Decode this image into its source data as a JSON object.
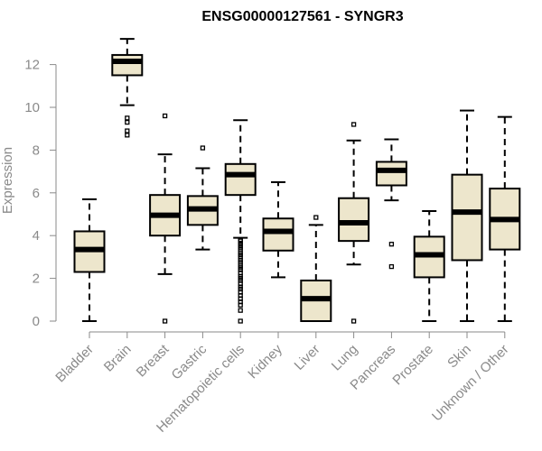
{
  "chart_data": {
    "type": "boxplot",
    "title": "ENSG00000127561 - SYNGR3",
    "xlabel": "",
    "ylabel": "Expression",
    "ylim": [
      0,
      13
    ],
    "yticks": [
      0,
      2,
      4,
      6,
      8,
      10,
      12
    ],
    "grid": false,
    "box_color": "#ede6cc",
    "categories": [
      "Bladder",
      "Brain",
      "Breast",
      "Gastric",
      "Hematopoietic cells",
      "Kidney",
      "Liver",
      "Lung",
      "Pancreas",
      "Prostate",
      "Skin",
      "Unknown / Other"
    ],
    "series": [
      {
        "min": 0.0,
        "q1": 2.3,
        "median": 3.35,
        "q3": 4.2,
        "max": 5.7,
        "outliers": []
      },
      {
        "min": 10.1,
        "q1": 11.5,
        "median": 12.15,
        "q3": 12.45,
        "max": 13.2,
        "outliers": [
          8.7,
          8.9,
          9.3,
          9.5
        ]
      },
      {
        "min": 2.2,
        "q1": 4.0,
        "median": 4.95,
        "q3": 5.9,
        "max": 7.8,
        "outliers": [
          0.0,
          9.6
        ]
      },
      {
        "min": 3.35,
        "q1": 4.5,
        "median": 5.25,
        "q3": 5.85,
        "max": 7.15,
        "outliers": [
          8.1
        ]
      },
      {
        "min": 3.9,
        "q1": 5.9,
        "median": 6.85,
        "q3": 7.35,
        "max": 9.4,
        "outliers": [
          0.0,
          0.5,
          0.75,
          0.9,
          1.05,
          1.2,
          1.35,
          1.5,
          1.6,
          1.75,
          1.9,
          2.0,
          2.1,
          2.25,
          2.4,
          2.5,
          2.6,
          2.75,
          2.85,
          3.0,
          3.1,
          3.2,
          3.35,
          3.45,
          3.55,
          3.65,
          3.75,
          3.8
        ]
      },
      {
        "min": 2.05,
        "q1": 3.3,
        "median": 4.2,
        "q3": 4.8,
        "max": 6.5,
        "outliers": []
      },
      {
        "min": 0.0,
        "q1": 0.0,
        "median": 1.05,
        "q3": 1.9,
        "max": 4.5,
        "outliers": [
          4.85
        ]
      },
      {
        "min": 2.65,
        "q1": 3.75,
        "median": 4.6,
        "q3": 5.75,
        "max": 8.45,
        "outliers": [
          0.0,
          9.2
        ]
      },
      {
        "min": 5.65,
        "q1": 6.35,
        "median": 7.05,
        "q3": 7.45,
        "max": 8.5,
        "outliers": [
          2.55,
          3.6
        ]
      },
      {
        "min": 0.0,
        "q1": 2.05,
        "median": 3.1,
        "q3": 3.95,
        "max": 5.15,
        "outliers": []
      },
      {
        "min": 0.0,
        "q1": 2.85,
        "median": 5.1,
        "q3": 6.85,
        "max": 9.85,
        "outliers": []
      },
      {
        "min": 0.0,
        "q1": 3.35,
        "median": 4.75,
        "q3": 6.2,
        "max": 9.55,
        "outliers": []
      }
    ]
  }
}
